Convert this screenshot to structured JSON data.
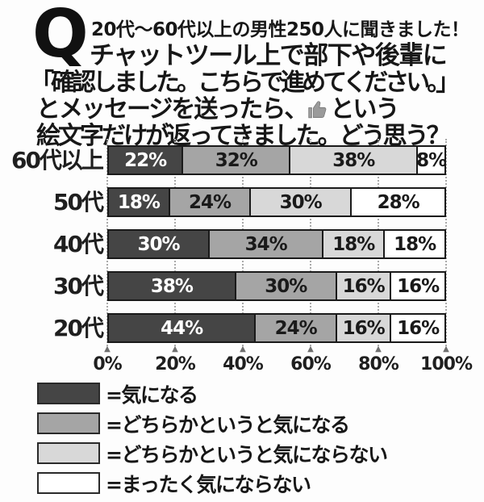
{
  "header": {
    "q_mark": "Q",
    "line1": "20代〜60代以上の男性250人に聞きました！",
    "line2": "チャットツール上で部下や後輩に",
    "line3": "「確認しました。こちらで進めてください。」",
    "line4_before": "とメッセージを送ったら、",
    "line4_emoji": "thumbs-up",
    "line4_after": "という",
    "line5": "絵文字だけが返ってきました。どう思う？"
  },
  "chart_data": {
    "type": "bar",
    "stacked": true,
    "orientation": "horizontal",
    "categories": [
      "60代以上",
      "50代",
      "40代",
      "30代",
      "20代"
    ],
    "series": [
      {
        "name": "気になる",
        "color": "#454545",
        "label_color": "#ffffff",
        "values": [
          22,
          18,
          30,
          38,
          44
        ]
      },
      {
        "name": "どちらかというと気になる",
        "color": "#a5a5a5",
        "label_color": "#1a1a1a",
        "values": [
          32,
          24,
          34,
          30,
          24
        ]
      },
      {
        "name": "どちらかというと気にならない",
        "color": "#d8d8d8",
        "label_color": "#1a1a1a",
        "values": [
          38,
          30,
          18,
          16,
          16
        ]
      },
      {
        "name": "まったく気にならない",
        "color": "#ffffff",
        "label_color": "#1a1a1a",
        "values": [
          8,
          28,
          18,
          16,
          16
        ]
      }
    ],
    "x_ticks": [
      "0%",
      "20%",
      "40%",
      "60%",
      "80%",
      "100%"
    ],
    "xlim": [
      0,
      100
    ],
    "grid": "dotted-vertical",
    "legend_position": "bottom",
    "value_suffix": "%"
  },
  "legend": {
    "items": [
      {
        "label": "=気になる",
        "color": "#454545"
      },
      {
        "label": "=どちらかというと気になる",
        "color": "#a5a5a5"
      },
      {
        "label": "=どちらかというと気にならない",
        "color": "#d8d8d8"
      },
      {
        "label": "=まったく気にならない",
        "color": "#ffffff"
      }
    ]
  },
  "icons": {
    "thumbs_up_color": "#9a9a9a",
    "tick_arrow": "▲"
  }
}
